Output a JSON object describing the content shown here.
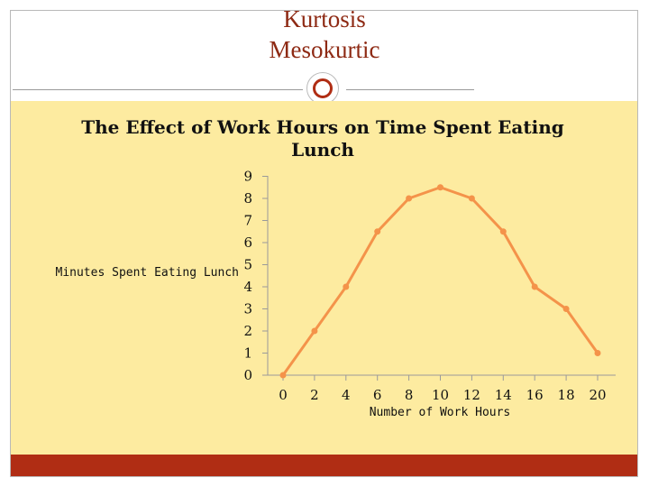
{
  "slide": {
    "title_line1": "Kurtosis",
    "title_line2": "Mesokurtic",
    "colors": {
      "accent": "#b02d14",
      "title": "#8e2a14",
      "panel": "#fdeba0",
      "line": "#f4934a"
    }
  },
  "chart_data": {
    "type": "line",
    "title_lines": [
      "The Effect of Work Hours on Time Spent Eating",
      "Lunch"
    ],
    "xlabel": "Number of Work Hours",
    "ylabel": "Minutes Spent Eating Lunch",
    "x": [
      0,
      2,
      4,
      6,
      8,
      10,
      12,
      14,
      16,
      18,
      20
    ],
    "y": [
      0,
      2,
      4,
      6.5,
      8,
      8.5,
      8,
      6.5,
      4,
      3,
      1
    ],
    "x_ticks": [
      "0",
      "2",
      "4",
      "6",
      "8",
      "10",
      "12",
      "14",
      "16",
      "18",
      "20"
    ],
    "y_ticks": [
      "0",
      "1",
      "2",
      "3",
      "4",
      "5",
      "6",
      "7",
      "8",
      "9"
    ],
    "xlim": [
      0,
      20
    ],
    "ylim": [
      0,
      9
    ],
    "grid": false,
    "legend": "none"
  }
}
